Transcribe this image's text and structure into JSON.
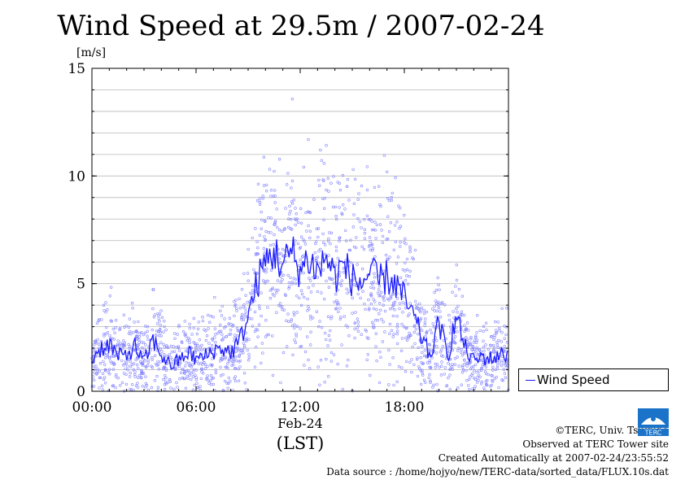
{
  "chart_data": {
    "type": "line",
    "title": "Wind Speed at 29.5m / 2007-02-24",
    "ylabel": "[m/s]",
    "xlabel_date": "Feb-24",
    "xlabel_tz": "(LST)",
    "ylim": [
      0,
      15
    ],
    "xlim_hours": [
      0,
      24
    ],
    "y_ticks": [
      "0",
      "5",
      "10",
      "15"
    ],
    "x_ticks": [
      {
        "hour": 0,
        "label": "00:00"
      },
      {
        "hour": 6,
        "label": "06:00"
      },
      {
        "hour": 12,
        "label": "12:00"
      },
      {
        "hour": 18,
        "label": "18:00"
      }
    ],
    "grid": true,
    "legend_position": "right",
    "series": [
      {
        "name": "Wind Speed",
        "color": "#1a1aff",
        "scatter_color": "#8080ff",
        "x_hours": [
          0,
          0.5,
          1,
          1.5,
          2,
          2.5,
          3,
          3.5,
          4,
          4.5,
          5,
          5.5,
          6,
          6.5,
          7,
          7.5,
          8,
          8.5,
          9,
          9.5,
          10,
          10.5,
          11,
          11.5,
          12,
          12.5,
          13,
          13.5,
          14,
          14.5,
          15,
          15.5,
          16,
          16.5,
          17,
          17.5,
          18,
          18.5,
          19,
          19.5,
          20,
          20.5,
          21,
          21.5,
          22,
          22.5,
          23,
          23.5
        ],
        "values": [
          1.5,
          2.0,
          2.2,
          1.6,
          1.7,
          2.1,
          1.3,
          2.4,
          1.7,
          1.2,
          1.4,
          1.8,
          1.5,
          1.6,
          1.9,
          2.0,
          1.8,
          2.3,
          3.5,
          5.0,
          6.0,
          6.5,
          5.8,
          6.5,
          5.6,
          6.2,
          5.5,
          6.3,
          5.3,
          5.9,
          5.2,
          5.0,
          5.5,
          5.1,
          5.3,
          5.0,
          4.3,
          3.5,
          2.5,
          1.6,
          3.2,
          1.6,
          3.5,
          2.0,
          1.4,
          1.6,
          1.5,
          1.7
        ]
      }
    ]
  },
  "credits": {
    "copyright": "©TERC, Univ. Tsukuba",
    "site": "Observed at TERC Tower site",
    "created": "Created Automatically at 2007-02-24/23:55:52",
    "source": "Data source : /home/hojyo/new/TERC-data/sorted_data/FLUX.10s.dat"
  },
  "logo": {
    "text": "TERC",
    "color": "#1a73c8"
  }
}
